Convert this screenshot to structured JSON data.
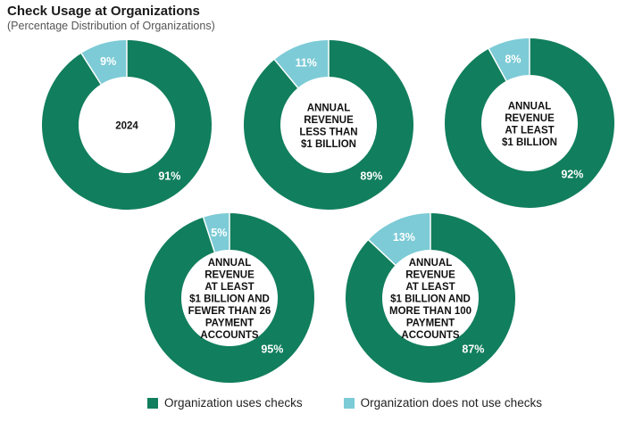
{
  "header": {
    "title": "Check Usage at Organizations",
    "subtitle": "(Percentage Distribution of Organizations)"
  },
  "colors": {
    "uses": "#117e5d",
    "not_uses": "#7ccbd6"
  },
  "legend": {
    "uses_label": "Organization uses checks",
    "not_uses_label": "Organization does not use checks"
  },
  "chart_data": [
    {
      "type": "pie",
      "center_label": [
        "2024"
      ],
      "uses": 91,
      "not_uses": 9,
      "uses_label": "91%",
      "not_uses_label": "9%"
    },
    {
      "type": "pie",
      "center_label": [
        "ANNUAL",
        "REVENUE",
        "LESS THAN",
        "$1 BILLION"
      ],
      "uses": 89,
      "not_uses": 11,
      "uses_label": "89%",
      "not_uses_label": "11%"
    },
    {
      "type": "pie",
      "center_label": [
        "ANNUAL",
        "REVENUE",
        "AT LEAST",
        "$1 BILLION"
      ],
      "uses": 92,
      "not_uses": 8,
      "uses_label": "92%",
      "not_uses_label": "8%"
    },
    {
      "type": "pie",
      "center_label": [
        "ANNUAL",
        "REVENUE",
        "AT LEAST",
        "$1 BILLION AND",
        "FEWER THAN 26",
        "PAYMENT",
        "ACCOUNTS"
      ],
      "uses": 95,
      "not_uses": 5,
      "uses_label": "95%",
      "not_uses_label": "5%"
    },
    {
      "type": "pie",
      "center_label": [
        "ANNUAL",
        "REVENUE",
        "AT LEAST",
        "$1 BILLION AND",
        "MORE THAN 100",
        "PAYMENT",
        "ACCOUNTS"
      ],
      "uses": 87,
      "not_uses": 13,
      "uses_label": "87%",
      "not_uses_label": "13%"
    }
  ]
}
